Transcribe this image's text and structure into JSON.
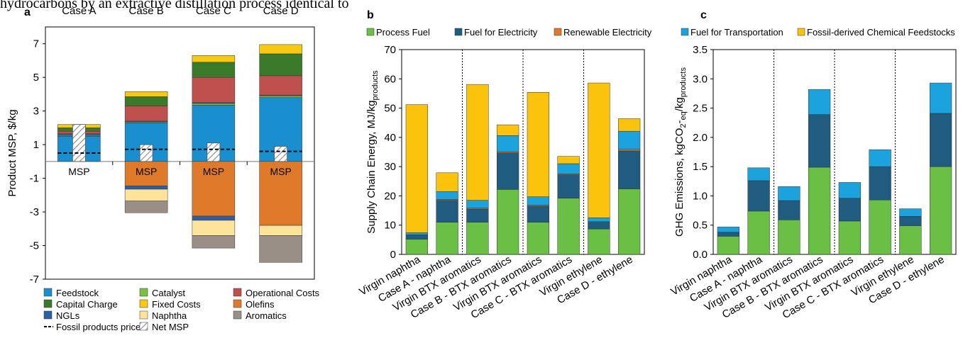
{
  "caption_text": "hydrocarbons by an extractive distillation process identical to",
  "colors": {
    "feedstock": "#1a8fd0",
    "catalyst": "#7ac142",
    "operational": "#c0504d",
    "capital": "#3b7a2a",
    "fixed": "#f7c911",
    "olefins": "#e07a2b",
    "ngls": "#2e5fa6",
    "naphtha": "#fde49a",
    "aromatics": "#9a8f86",
    "process_fuel": "#6abf45",
    "fuel_elec": "#1f5c80",
    "renew_elec": "#e07a2b",
    "fuel_trans": "#1aa3dc",
    "fossil_feed": "#fcc30d"
  },
  "chart_data": [
    {
      "panel": "a",
      "type": "bar",
      "stacked": true,
      "categories": [
        "Case A",
        "Case B",
        "Case C",
        "Case D"
      ],
      "ylabel": "Product  MSP, $/kg",
      "ylim": [
        -7,
        8
      ],
      "yticks": [
        7,
        5,
        3,
        1,
        -1,
        -3,
        -5,
        -7
      ],
      "bar_label": "MSP",
      "series": [
        {
          "name": "Feedstock",
          "key": "feedstock",
          "values": [
            1.5,
            2.3,
            3.35,
            3.8
          ]
        },
        {
          "name": "Catalyst",
          "key": "catalyst",
          "values": [
            0.05,
            0.05,
            0.1,
            0.1
          ]
        },
        {
          "name": "NGLs",
          "key": "ngls",
          "values": [
            0.1,
            0.05,
            0.05,
            0.05
          ]
        },
        {
          "name": "Operational Costs",
          "key": "operational",
          "values": [
            0.15,
            0.9,
            1.5,
            1.15
          ]
        },
        {
          "name": "Capital Charge",
          "key": "capital",
          "values": [
            0.2,
            0.55,
            0.9,
            1.3
          ]
        },
        {
          "name": "Fixed Costs",
          "key": "fixed",
          "values": [
            0.2,
            0.3,
            0.4,
            0.55
          ]
        },
        {
          "name": "Olefins",
          "key": "olefins",
          "values": [
            0,
            -1.45,
            -3.25,
            -3.8
          ]
        },
        {
          "name": "NGLs",
          "key": "ngls",
          "values": [
            0,
            -0.2,
            -0.25,
            0
          ]
        },
        {
          "name": "Naphtha",
          "key": "naphtha",
          "values": [
            0,
            -0.7,
            -0.9,
            -0.6
          ]
        },
        {
          "name": "Aromatics",
          "key": "aromatics",
          "values": [
            0,
            -0.7,
            -0.75,
            -1.6
          ]
        }
      ],
      "net_msp": [
        2.2,
        1.0,
        1.1,
        0.9
      ],
      "fossil_price": [
        0.5,
        0.72,
        0.72,
        0.6
      ],
      "legend": [
        {
          "label": "Feedstock",
          "key": "feedstock",
          "kind": "box"
        },
        {
          "label": "Catalyst",
          "key": "catalyst",
          "kind": "box"
        },
        {
          "label": "Operational Costs",
          "key": "operational",
          "kind": "box"
        },
        {
          "label": "Capital Charge",
          "key": "capital",
          "kind": "box"
        },
        {
          "label": "Fixed Costs",
          "key": "fixed",
          "kind": "box"
        },
        {
          "label": "Olefins",
          "key": "olefins",
          "kind": "box"
        },
        {
          "label": "NGLs",
          "key": "ngls",
          "kind": "box"
        },
        {
          "label": "Naphtha",
          "key": "naphtha",
          "kind": "box"
        },
        {
          "label": "Aromatics",
          "key": "aromatics",
          "kind": "box"
        },
        {
          "label": "Fossil products price",
          "key": "",
          "kind": "dash"
        },
        {
          "label": "Net MSP",
          "key": "",
          "kind": "hatch"
        }
      ]
    },
    {
      "panel": "b",
      "type": "bar",
      "stacked": true,
      "categories": [
        "Virgin naphtha",
        "Case A - naphtha",
        "Virgin BTX aromatics",
        "Case B - BTX aromatics",
        "Virgin BTX aromatics",
        "Case C - BTX aromatics",
        "Virgin ethylene",
        "Case D - ethylene"
      ],
      "ylabel": "Supply Chain Energy, MJ/kg",
      "ylabel_sub": "products",
      "ylim": [
        0,
        70
      ],
      "yticks": [
        0,
        10,
        20,
        30,
        40,
        50,
        60,
        70
      ],
      "series": [
        {
          "name": "Process Fuel",
          "key": "process_fuel",
          "values": [
            5.2,
            11,
            11,
            22.2,
            11,
            19.2,
            8.7,
            22.4
          ]
        },
        {
          "name": "Fuel for Electricity",
          "key": "fuel_elec",
          "values": [
            1.5,
            7.5,
            4.5,
            12.5,
            5.5,
            8,
            2.5,
            13
          ]
        },
        {
          "name": "Renewable Electricity",
          "key": "renew_elec",
          "values": [
            0,
            0.3,
            0.3,
            0.4,
            0.3,
            0.3,
            0,
            0.5
          ]
        },
        {
          "name": "Fuel for Transportation",
          "key": "fuel_trans",
          "values": [
            0.7,
            2.7,
            2.7,
            5.5,
            2.9,
            3.5,
            1.3,
            6.2
          ]
        },
        {
          "name": "Fossil-derived Chemical Feedstocks",
          "key": "fossil_feed",
          "values": [
            43.8,
            6.4,
            39.6,
            3.7,
            35.7,
            2.5,
            46.1,
            4.3
          ]
        }
      ]
    },
    {
      "panel": "c",
      "type": "bar",
      "stacked": true,
      "categories": [
        "Virgin naphtha",
        "Case A - naphtha",
        "Virgin BTX aromatics",
        "Case B - BTX aromatics",
        "Virgin BTX aromatics",
        "Case C - BTX aromatics",
        "Virgin ethylene",
        "Case D - ethylene"
      ],
      "ylabel": "GHG Emissions, kgCO",
      "ylabel_sub1": "2",
      "ylabel_mid": "-",
      "ylabel_sub2": "eq",
      "ylabel_end": "/kg",
      "ylabel_sub3": "products",
      "ylim": [
        0,
        3.5
      ],
      "yticks": [
        0.0,
        0.5,
        1.0,
        1.5,
        2.0,
        2.5,
        3.0,
        3.5
      ],
      "series": [
        {
          "name": "Process Fuel",
          "key": "process_fuel",
          "values": [
            0.31,
            0.74,
            0.59,
            1.49,
            0.57,
            0.93,
            0.49,
            1.5
          ]
        },
        {
          "name": "Fuel for Electricity",
          "key": "fuel_elec",
          "values": [
            0.07,
            0.52,
            0.33,
            0.9,
            0.39,
            0.57,
            0.16,
            0.91
          ]
        },
        {
          "name": "Fuel for Transportation",
          "key": "fuel_trans",
          "values": [
            0.09,
            0.22,
            0.24,
            0.43,
            0.27,
            0.29,
            0.13,
            0.52
          ]
        }
      ]
    }
  ],
  "legend_bc": [
    {
      "label": "Process Fuel",
      "key": "process_fuel"
    },
    {
      "label": "Fuel for Electricity",
      "key": "fuel_elec"
    },
    {
      "label": "Renewable Electricity",
      "key": "renew_elec"
    },
    {
      "label": "Fuel for Transportation",
      "key": "fuel_trans"
    },
    {
      "label": "Fossil-derived Chemical Feedstocks",
      "key": "fossil_feed"
    }
  ]
}
